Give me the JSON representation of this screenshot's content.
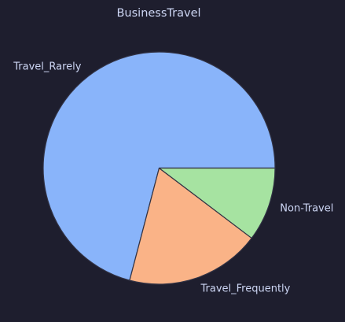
{
  "chart_data": {
    "type": "pie",
    "title": "BusinessTravel",
    "categories": [
      "Travel_Rarely",
      "Travel_Frequently",
      "Non-Travel"
    ],
    "values": [
      70.9,
      18.8,
      10.3
    ],
    "colors": [
      "#89b4fa",
      "#fab387",
      "#a6e3a1"
    ],
    "start_angle_deg": 0,
    "direction": "counterclockwise",
    "edge_color": "#313244",
    "background": "#1e1e2e",
    "text_color": "#cdd6f4"
  }
}
